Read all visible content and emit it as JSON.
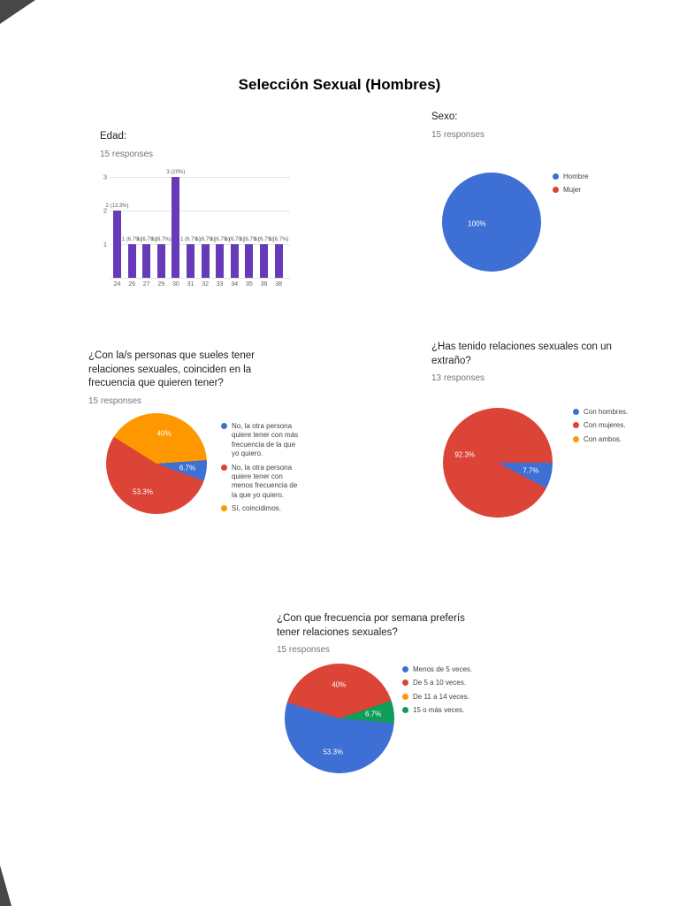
{
  "page": {
    "title": "Selección Sexual (Hombres)"
  },
  "colors": {
    "blue": "#3e6fd4",
    "red": "#db4437",
    "yellow": "#ff9800",
    "green": "#0f9d58",
    "purple": "#673ab7"
  },
  "chart_data": [
    {
      "id": "edad",
      "type": "bar",
      "title": "Edad:",
      "responses": "15 responses",
      "categories": [
        "24",
        "26",
        "27",
        "29",
        "30",
        "31",
        "32",
        "33",
        "34",
        "35",
        "36",
        "38"
      ],
      "values": [
        2,
        1,
        1,
        1,
        3,
        1,
        1,
        1,
        1,
        1,
        1,
        1
      ],
      "bar_labels": [
        "2 (13.3%)",
        "1 (6.7%)",
        "1 (6.7%)",
        "1 (6.7%)",
        "3 (20%)",
        "1 (6.7%)",
        "1 (6.7%)",
        "1 (6.7%)",
        "1 (6.7%)",
        "1 (6.7%)",
        "1 (6.7%)",
        "1 (6.7%)"
      ],
      "ymax": 3,
      "yticks": [
        1,
        2,
        3
      ],
      "bar_color": "purple",
      "grid": true
    },
    {
      "id": "sexo",
      "type": "pie",
      "title": "Sexo:",
      "responses": "15 responses",
      "start_angle": 0,
      "legend_position": "right",
      "slices": [
        {
          "label": "Hombre",
          "value": 100,
          "pct_label": "100%",
          "color": "blue",
          "label_angle": 262,
          "label_r": 0.3
        },
        {
          "label": "Mujer",
          "value": 0,
          "color": "red"
        }
      ]
    },
    {
      "id": "coinciden-frecuencia",
      "type": "pie",
      "title": "¿Con la/s personas que sueles tener relaciones sexuales, coinciden en la frecuencia que quieren tener?",
      "responses": "15 responses",
      "start_angle": 86,
      "legend_position": "right",
      "slices": [
        {
          "label": "No, la otra persona quiere tener con más frecuencia de la que yo quiero.",
          "value": 6.7,
          "pct_label": "6.7%",
          "color": "blue"
        },
        {
          "label": "No, la otra persona quiere tener con menos frecuencia de la que yo quiero.",
          "value": 53.3,
          "pct_label": "53.3%",
          "color": "red"
        },
        {
          "label": "Sí, coincidimos.",
          "value": 40,
          "pct_label": "40%",
          "color": "yellow"
        }
      ]
    },
    {
      "id": "extrano",
      "type": "pie",
      "title": "¿Has tenido relaciones sexuales con un extraño?",
      "responses": "13 responses",
      "start_angle": 90,
      "legend_position": "right",
      "slices": [
        {
          "label": "Con hombres.",
          "value": 7.7,
          "pct_label": "7.7%",
          "color": "blue"
        },
        {
          "label": "Con mujeres.",
          "value": 92.3,
          "pct_label": "92.3%",
          "color": "red"
        },
        {
          "label": "Con ambos.",
          "value": 0,
          "color": "yellow"
        }
      ]
    },
    {
      "id": "frecuencia-semana",
      "type": "pie",
      "title": "¿Con que frecuencia por semana preferís tener relaciones sexuales?",
      "responses": "15 responses",
      "start_angle": 95,
      "legend_position": "right",
      "slices": [
        {
          "label": "Menos de 5 veces.",
          "value": 53.3,
          "pct_label": "53.3%",
          "color": "blue"
        },
        {
          "label": "De 5 a 10 veces.",
          "value": 40,
          "pct_label": "40%",
          "color": "red"
        },
        {
          "label": "De 11 a 14 veces.",
          "value": 0,
          "color": "yellow"
        },
        {
          "label": "15 o más veces.",
          "value": 6.7,
          "pct_label": "6.7%",
          "color": "green"
        }
      ]
    }
  ]
}
